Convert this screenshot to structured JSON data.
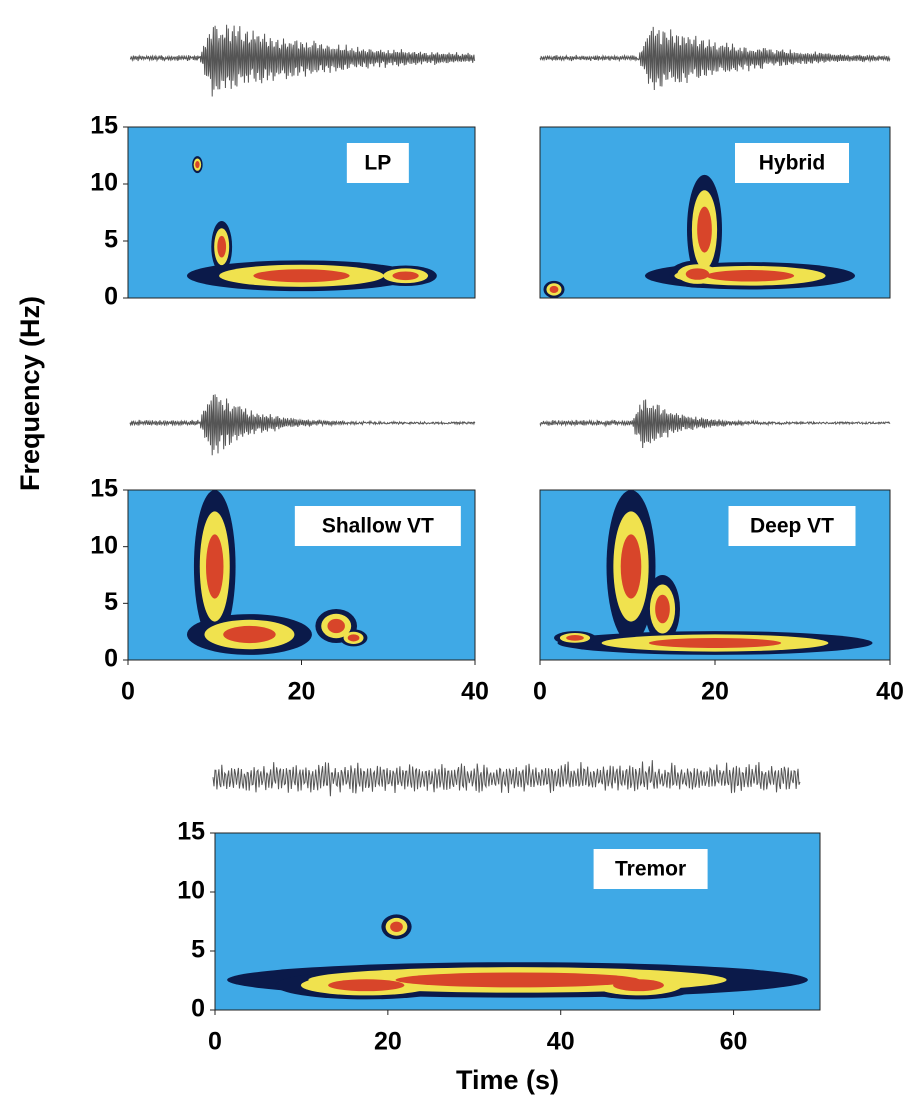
{
  "chart_data": [
    {
      "type": "heatmap",
      "label": "LP",
      "xlim": [
        0,
        40
      ],
      "ylim": [
        0,
        15
      ],
      "yticks": [
        0,
        5,
        10,
        15
      ]
    },
    {
      "type": "heatmap",
      "label": "Hybrid",
      "xlim": [
        0,
        40
      ],
      "ylim": [
        0,
        15
      ]
    },
    {
      "type": "heatmap",
      "label": "Shallow VT",
      "xlim": [
        0,
        40
      ],
      "ylim": [
        0,
        15
      ],
      "yticks": [
        0,
        5,
        10,
        15
      ],
      "xticks": [
        0,
        20,
        40
      ],
      "ylabel": "Frequency (Hz)"
    },
    {
      "type": "heatmap",
      "label": "Deep VT",
      "xlim": [
        0,
        40
      ],
      "ylim": [
        0,
        15
      ],
      "xticks": [
        0,
        20,
        40
      ]
    },
    {
      "type": "heatmap",
      "label": "Tremor",
      "xlim": [
        0,
        70
      ],
      "ylim": [
        0,
        15
      ],
      "yticks": [
        0,
        5,
        10,
        15
      ],
      "xticks": [
        0,
        20,
        40,
        60
      ],
      "xlabel": "Time (s)"
    }
  ]
}
